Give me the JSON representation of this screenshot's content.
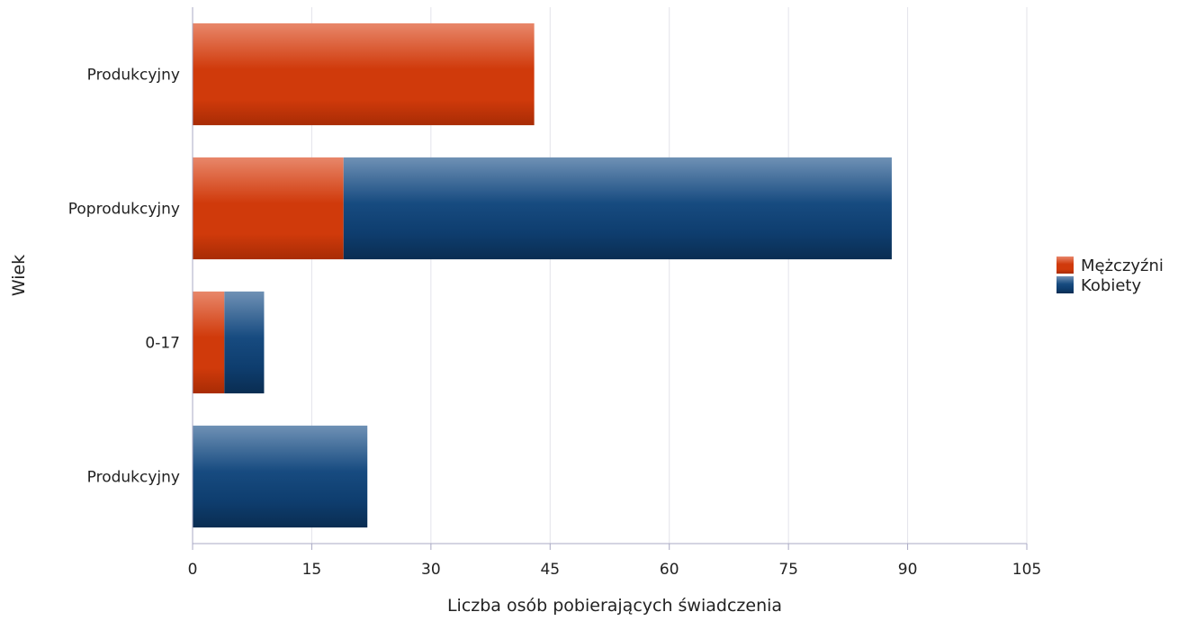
{
  "chart_data": {
    "type": "bar",
    "orientation": "horizontal",
    "stacked": true,
    "categories": [
      "Produkcyjny",
      "Poprodukcyjny",
      "0-17",
      "Produkcyjny"
    ],
    "series": [
      {
        "name": "Mężczyźni",
        "color": "#d03a0b",
        "values": [
          43,
          19,
          4,
          0
        ]
      },
      {
        "name": "Kobiety",
        "color": "#0e3d6e",
        "values": [
          0,
          69,
          5,
          22
        ]
      }
    ],
    "xlabel": "Liczba osób pobierających świadczenia",
    "ylabel": "Wiek",
    "xlim": [
      0,
      105
    ],
    "xticks": [
      0,
      15,
      30,
      45,
      60,
      75,
      90,
      105
    ],
    "grid": true,
    "legend": "right"
  }
}
